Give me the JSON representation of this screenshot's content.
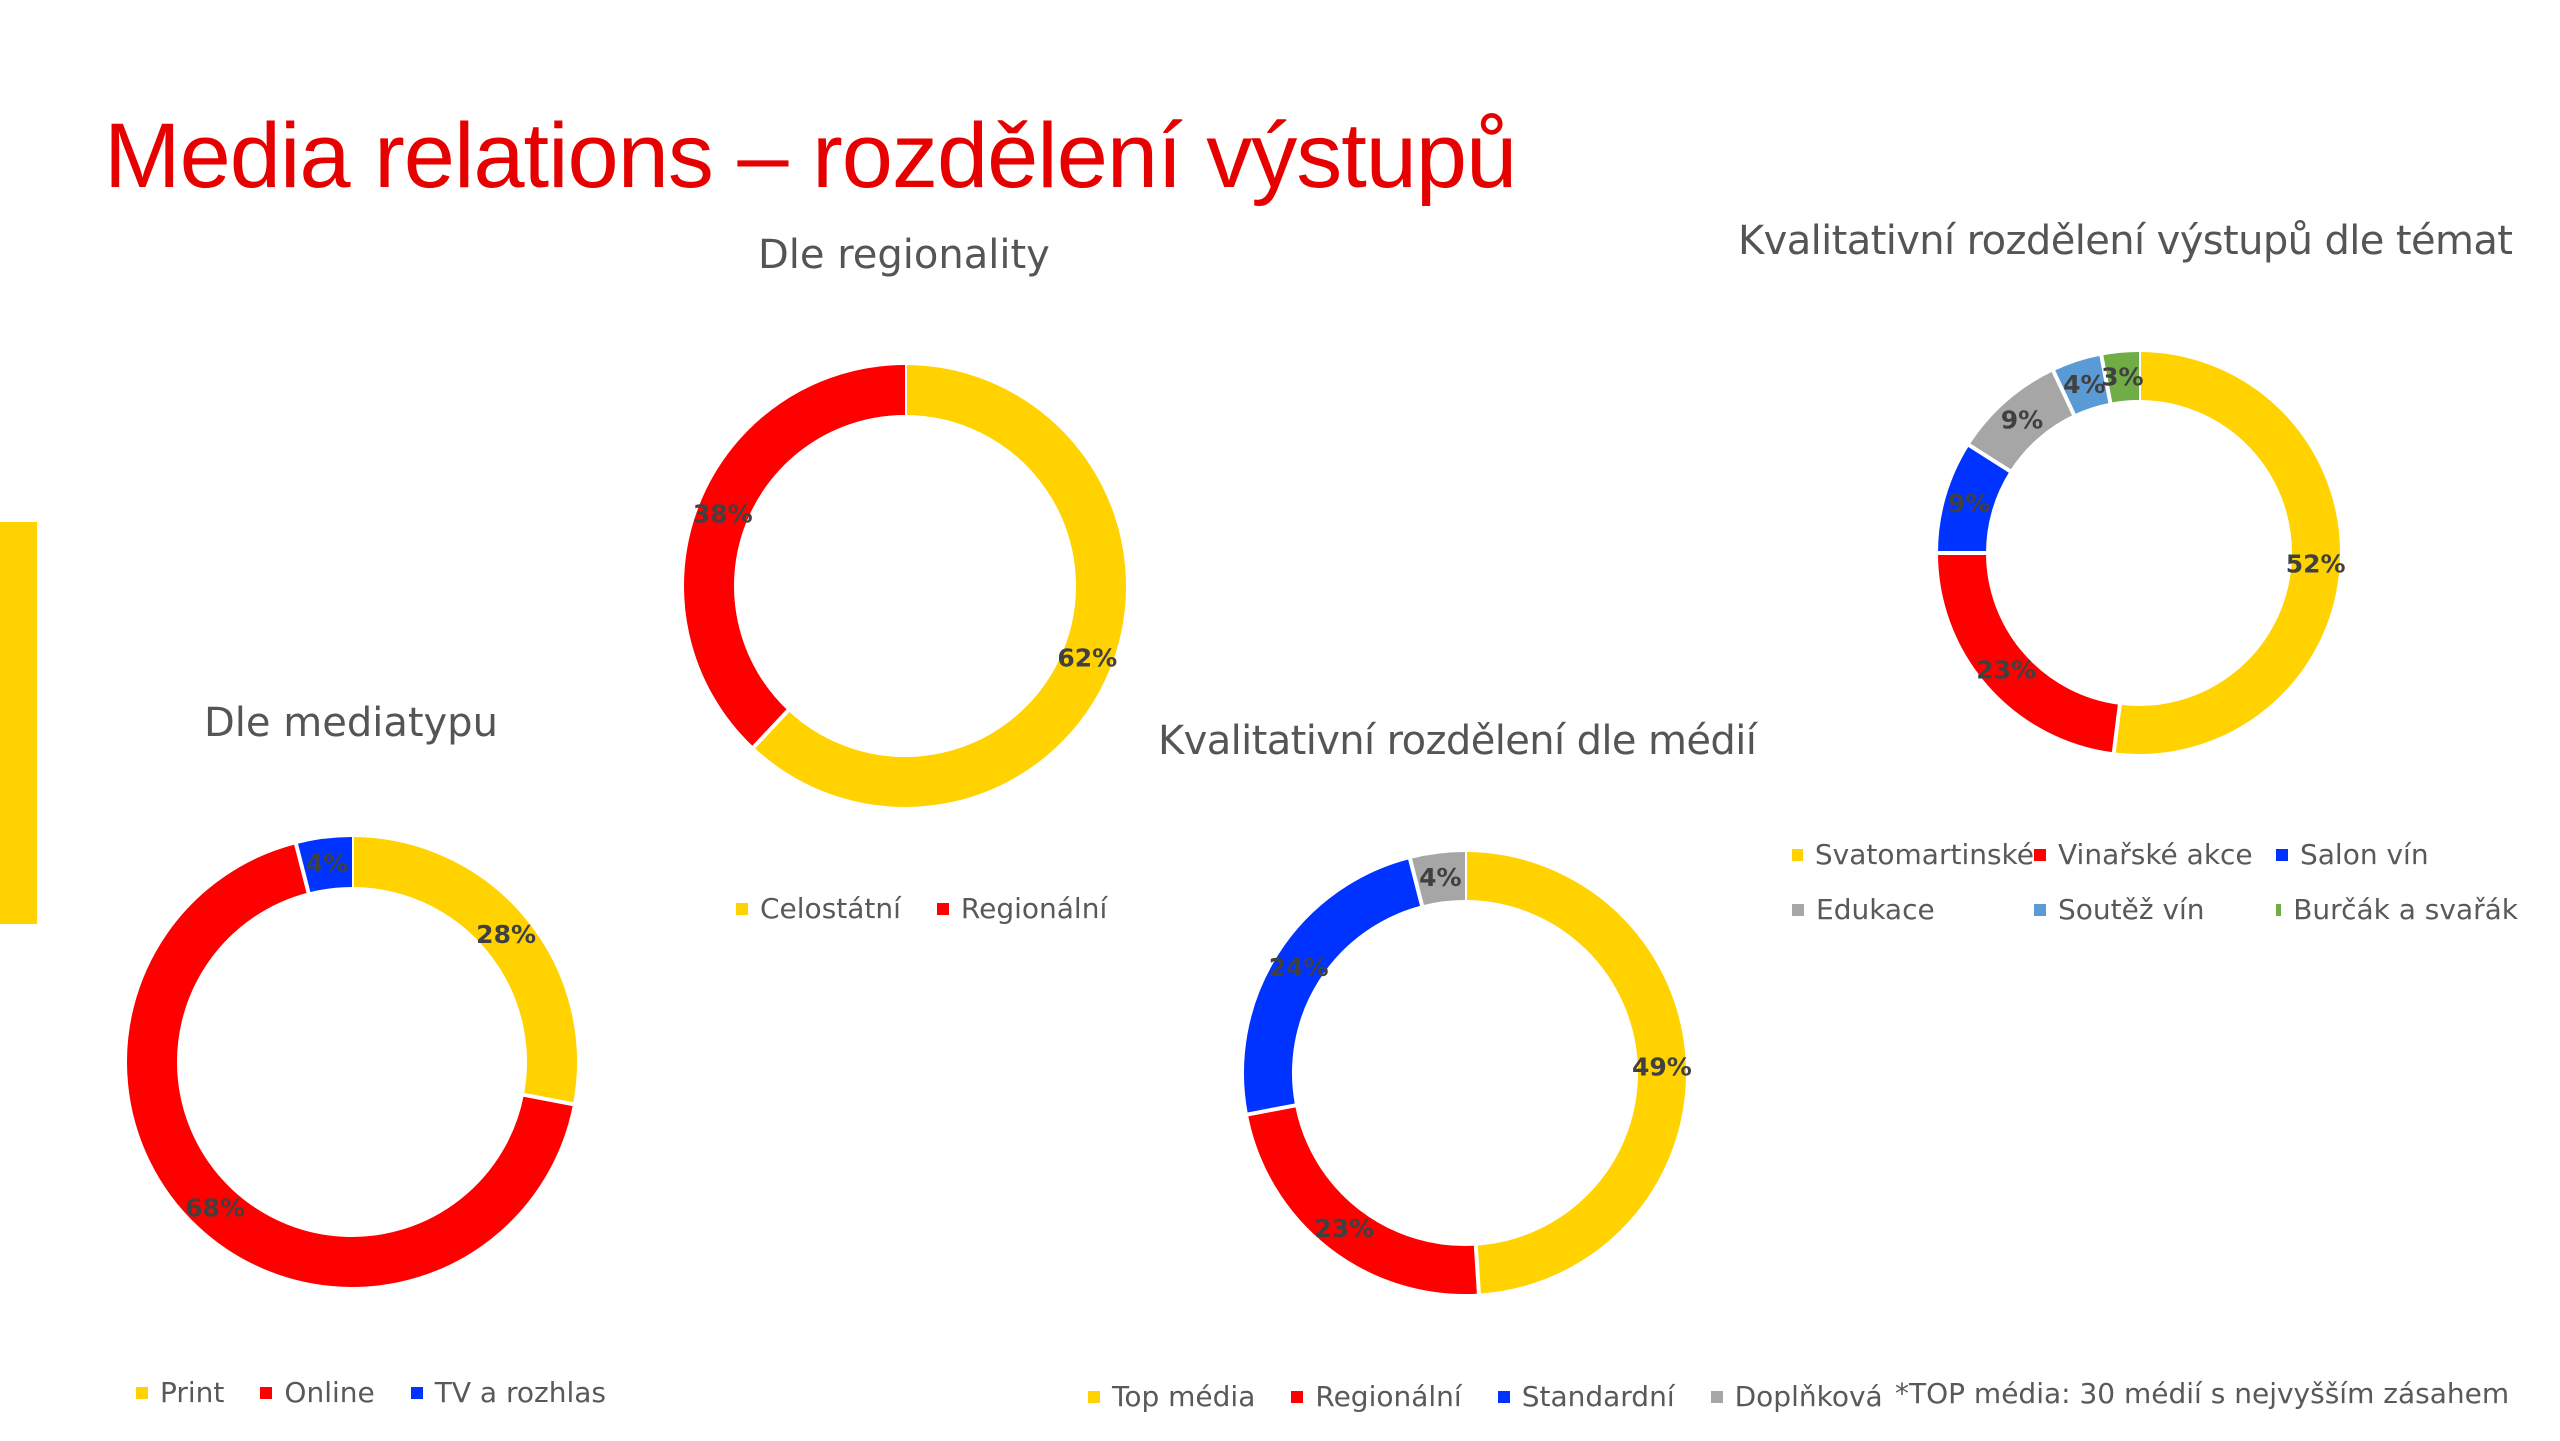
{
  "page": {
    "title": "Media relations – rozdělení výstupů",
    "title_color": "#E60000",
    "accent_color": "#FFD200",
    "footnote": "*TOP média: 30 médií s nejvyšším zásahem"
  },
  "chart_data": [
    {
      "id": "reg",
      "type": "pie",
      "title": "Dle regionality",
      "categories": [
        "Celostátní",
        "Regionální"
      ],
      "values": [
        62,
        38
      ],
      "labels": [
        "62%",
        "38%"
      ],
      "colors": [
        "#FFD200",
        "#FF0000"
      ],
      "legend_position": "bottom"
    },
    {
      "id": "med",
      "type": "pie",
      "title": "Dle mediatypu",
      "categories": [
        "Print",
        "Online",
        "TV a rozhlas"
      ],
      "values": [
        28,
        68,
        4
      ],
      "labels": [
        "28%",
        "68%",
        "4%"
      ],
      "colors": [
        "#FFD200",
        "#FF0000",
        "#0033FF"
      ],
      "legend_position": "bottom"
    },
    {
      "id": "kdm",
      "type": "pie",
      "title": "Kvalitativní rozdělení dle médií",
      "categories": [
        "Top média",
        "Regionální",
        "Standardní",
        "Doplňková"
      ],
      "values": [
        49,
        23,
        24,
        4
      ],
      "labels": [
        "49%",
        "23%",
        "24%",
        "4%"
      ],
      "colors": [
        "#FFD200",
        "#FF0000",
        "#0033FF",
        "#A6A6A6"
      ],
      "legend_position": "bottom"
    },
    {
      "id": "ktm",
      "type": "pie",
      "title": "Kvalitativní rozdělení výstupů dle témat",
      "categories": [
        "Svatomartinské",
        "Vinařské akce",
        "Salon vín",
        "Edukace",
        "Soutěž vín",
        "Burčák a svařák"
      ],
      "values": [
        52,
        23,
        9,
        9,
        4,
        3
      ],
      "labels": [
        "52%",
        "23%",
        "9%",
        "9%",
        "4%",
        "3%"
      ],
      "colors": [
        "#FFD200",
        "#FF0000",
        "#0033FF",
        "#A6A6A6",
        "#5B9BD5",
        "#70AD47"
      ],
      "legend_position": "bottom"
    }
  ]
}
